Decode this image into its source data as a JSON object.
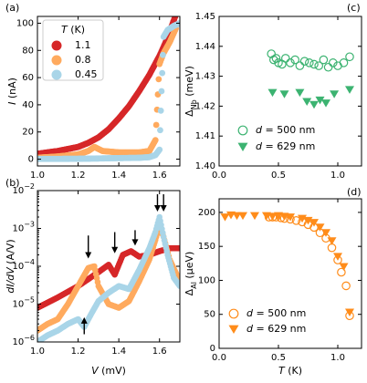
{
  "figure": {
    "panels": [
      "(a)",
      "(b)",
      "(c)",
      "(d)"
    ]
  },
  "colors": {
    "t11": "#d62728",
    "t08": "#ffaa5e",
    "t045": "#a9d5e8",
    "green": "#3cb371",
    "orange": "#ff8c1a"
  },
  "chart_data": [
    {
      "panel": "(a)",
      "type": "scatter",
      "xlabel": "",
      "ylabel": "I (nA)",
      "xlim": [
        1.0,
        1.7
      ],
      "ylim": [
        -5,
        105
      ],
      "xticks": [
        "1.0",
        "1.2",
        "1.4",
        "1.6"
      ],
      "yticks": [
        "0",
        "20",
        "40",
        "60",
        "80",
        "100"
      ],
      "legend": {
        "title": "T (K)",
        "position": "top-left",
        "entries": [
          "1.1",
          "0.8",
          "0.45"
        ]
      },
      "series": [
        {
          "name": "1.1",
          "x": [
            1.0,
            1.1,
            1.2,
            1.25,
            1.3,
            1.35,
            1.4,
            1.45,
            1.5,
            1.55,
            1.6,
            1.63,
            1.66,
            1.68
          ],
          "y": [
            4,
            6,
            9,
            12,
            16,
            22,
            30,
            39,
            50,
            62,
            76,
            86,
            98,
            106
          ]
        },
        {
          "name": "0.8",
          "x": [
            1.0,
            1.1,
            1.2,
            1.25,
            1.28,
            1.32,
            1.4,
            1.5,
            1.55,
            1.58,
            1.6,
            1.62,
            1.65,
            1.68
          ],
          "y": [
            1,
            2,
            3.5,
            6,
            9,
            6,
            5,
            5,
            6,
            14,
            70,
            78,
            86,
            96
          ]
        },
        {
          "name": "0.45",
          "x": [
            1.0,
            1.1,
            1.2,
            1.3,
            1.4,
            1.5,
            1.55,
            1.58,
            1.6,
            1.61,
            1.62,
            1.64,
            1.67,
            1.7
          ],
          "y": [
            0.2,
            0.2,
            0.3,
            0.5,
            0.8,
            1,
            1.5,
            3,
            7,
            50,
            90,
            95,
            98,
            100
          ]
        }
      ]
    },
    {
      "panel": "(b)",
      "type": "scatter",
      "xlabel": "V (mV)",
      "ylabel": "dI/dV (A/V)",
      "yscale": "log",
      "xlim": [
        1.0,
        1.7
      ],
      "ylim": [
        1e-06,
        0.01
      ],
      "xticks": [
        "1.0",
        "1.2",
        "1.4",
        "1.6"
      ],
      "yticks": [
        "10^-6",
        "10^-5",
        "10^-4",
        "10^-3",
        "10^-2"
      ],
      "annotations": {
        "arrows_down_at_V": [
          1.25,
          1.38,
          1.48,
          1.59,
          1.62
        ],
        "arrow_up_at_V": [
          1.23
        ]
      },
      "series": [
        {
          "name": "1.1",
          "x": [
            1.0,
            1.1,
            1.2,
            1.3,
            1.35,
            1.38,
            1.42,
            1.46,
            1.5,
            1.55,
            1.6,
            1.65,
            1.7
          ],
          "y": [
            8e-06,
            1.5e-05,
            3e-05,
            7e-05,
            0.00011,
            6e-05,
            0.0002,
            0.00025,
            0.00018,
            0.0002,
            0.00025,
            0.0003,
            0.0003
          ]
        },
        {
          "name": "0.8",
          "x": [
            1.0,
            1.05,
            1.1,
            1.15,
            1.2,
            1.25,
            1.28,
            1.3,
            1.35,
            1.4,
            1.45,
            1.5,
            1.55,
            1.58,
            1.6,
            1.62,
            1.65,
            1.7
          ],
          "y": [
            2e-06,
            3e-06,
            4e-06,
            1e-05,
            3e-05,
            9e-05,
            0.0001,
            3e-05,
            1e-05,
            8e-06,
            1.2e-05,
            4e-05,
            0.00015,
            0.0005,
            0.0012,
            0.0006,
            0.00015,
            4e-05
          ]
        },
        {
          "name": "0.45",
          "x": [
            1.0,
            1.05,
            1.1,
            1.15,
            1.2,
            1.23,
            1.26,
            1.3,
            1.35,
            1.4,
            1.45,
            1.5,
            1.55,
            1.58,
            1.6,
            1.62,
            1.64,
            1.67,
            1.7
          ],
          "y": [
            1e-06,
            1.5e-06,
            2e-06,
            3e-06,
            4e-06,
            2.5e-06,
            5e-06,
            1.2e-05,
            2e-05,
            3e-05,
            2.5e-05,
            8e-05,
            0.0003,
            0.0008,
            0.002,
            0.0006,
            0.0002,
            5e-05,
            3e-05
          ]
        }
      ]
    },
    {
      "panel": "(c)",
      "type": "scatter",
      "xlabel": "",
      "ylabel": "Δ_Nb (meV)",
      "xlim": [
        0.0,
        1.2
      ],
      "ylim": [
        1.4,
        1.45
      ],
      "xticks": [
        "0.0",
        "0.5",
        "1.0"
      ],
      "yticks": [
        "1.40",
        "1.41",
        "1.42",
        "1.43",
        "1.44",
        "1.45"
      ],
      "legend": {
        "position": "bottom-right",
        "entries": [
          "d = 500 nm",
          "d = 629 nm"
        ]
      },
      "series": [
        {
          "name": "d = 500 nm",
          "marker": "circle-open",
          "x": [
            0.44,
            0.46,
            0.48,
            0.5,
            0.53,
            0.56,
            0.6,
            0.64,
            0.68,
            0.72,
            0.76,
            0.8,
            0.84,
            0.88,
            0.92,
            0.96,
            1.0,
            1.05,
            1.1
          ],
          "y": [
            1.4375,
            1.4355,
            1.436,
            1.4345,
            1.434,
            1.436,
            1.4345,
            1.4355,
            1.4335,
            1.435,
            1.4345,
            1.434,
            1.4335,
            1.4355,
            1.433,
            1.4345,
            1.4335,
            1.4345,
            1.4365
          ]
        },
        {
          "name": "d = 629 nm",
          "marker": "triangle-down",
          "x": [
            0.45,
            0.55,
            0.68,
            0.74,
            0.8,
            0.85,
            0.9,
            0.97,
            1.1
          ],
          "y": [
            1.4245,
            1.424,
            1.4245,
            1.4215,
            1.4205,
            1.422,
            1.421,
            1.424,
            1.4255
          ]
        }
      ]
    },
    {
      "panel": "(d)",
      "type": "scatter",
      "xlabel": "T (K)",
      "ylabel": "Δ_Al (μeV)",
      "xlim": [
        0.0,
        1.2
      ],
      "ylim": [
        0,
        220
      ],
      "xticks": [
        "0.0",
        "0.5",
        "1.0"
      ],
      "yticks": [
        "0",
        "50",
        "100",
        "150",
        "200"
      ],
      "legend": {
        "position": "bottom-left",
        "entries": [
          "d = 500 nm",
          "d = 629 nm"
        ]
      },
      "series": [
        {
          "name": "d = 500 nm",
          "marker": "circle-open",
          "x": [
            0.42,
            0.45,
            0.48,
            0.52,
            0.55,
            0.6,
            0.65,
            0.7,
            0.75,
            0.8,
            0.85,
            0.9,
            0.95,
            1.0,
            1.03,
            1.07,
            1.1
          ],
          "y": [
            193,
            193,
            193,
            192,
            191,
            190,
            188,
            186,
            182,
            178,
            170,
            162,
            148,
            130,
            112,
            92,
            48
          ]
        },
        {
          "name": "d = 629 nm",
          "marker": "triangle-down",
          "x": [
            0.05,
            0.1,
            0.15,
            0.2,
            0.3,
            0.4,
            0.45,
            0.5,
            0.55,
            0.6,
            0.7,
            0.75,
            0.8,
            0.85,
            0.9,
            0.95,
            1.0,
            1.05,
            1.1
          ],
          "y": [
            193,
            196,
            195,
            195,
            195,
            195,
            194,
            195,
            194,
            193,
            191,
            188,
            185,
            178,
            170,
            158,
            135,
            120,
            53
          ]
        }
      ]
    }
  ]
}
